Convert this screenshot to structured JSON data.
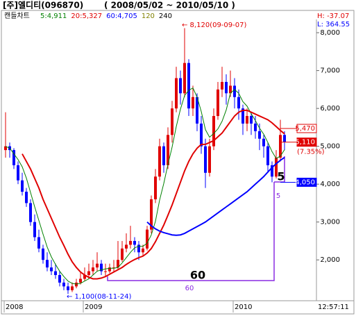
{
  "header": {
    "title": "[주]엘디티(096870)",
    "range": "( 2008/05/02 ~ 2010/05/10 )",
    "chart_label": "캔들차트",
    "high_info": "H: -37.07",
    "low_info": "L: 364.55",
    "time": "12:57:11"
  },
  "chart_data": {
    "type": "candlestick",
    "categories": [
      "2008",
      null,
      null,
      null,
      null,
      null,
      null,
      null,
      null,
      null,
      null,
      null,
      null,
      null,
      null,
      null,
      null,
      null,
      null,
      "2009",
      null,
      null,
      null,
      null,
      null,
      null,
      null,
      null,
      null,
      null,
      null,
      null,
      null,
      null,
      null,
      null,
      null,
      null,
      null,
      null,
      null,
      null,
      null,
      null,
      null,
      null,
      null,
      null,
      null,
      null,
      null,
      null,
      null,
      null,
      null,
      "2010",
      null,
      null,
      null,
      null,
      null,
      null,
      null,
      null,
      null,
      null,
      null,
      null
    ],
    "ohlc": [
      [
        4900,
        5900,
        4700,
        5000
      ],
      [
        5000,
        5100,
        4700,
        4900
      ],
      [
        4900,
        4950,
        4400,
        4500
      ],
      [
        4500,
        4600,
        4000,
        4100
      ],
      [
        4100,
        4300,
        3700,
        3800
      ],
      [
        3800,
        3900,
        3400,
        3500
      ],
      [
        3500,
        3600,
        2900,
        3000
      ],
      [
        3000,
        3200,
        2500,
        2600
      ],
      [
        2600,
        2800,
        2200,
        2300
      ],
      [
        2300,
        2400,
        1900,
        2000
      ],
      [
        2000,
        2200,
        1700,
        1800
      ],
      [
        1800,
        2000,
        1600,
        1700
      ],
      [
        1700,
        1900,
        1500,
        1600
      ],
      [
        1600,
        1700,
        1300,
        1400
      ],
      [
        1400,
        1500,
        1200,
        1300
      ],
      [
        1300,
        1400,
        1100,
        1200
      ],
      [
        1200,
        1400,
        1150,
        1300
      ],
      [
        1300,
        1500,
        1250,
        1400
      ],
      [
        1400,
        1700,
        1350,
        1500
      ],
      [
        1500,
        1800,
        1450,
        1600
      ],
      [
        1600,
        1900,
        1500,
        1700
      ],
      [
        1700,
        2000,
        1600,
        1800
      ],
      [
        1800,
        2200,
        1700,
        1900
      ],
      [
        1900,
        2000,
        1600,
        1700
      ],
      [
        1700,
        1900,
        1550,
        1700
      ],
      [
        1700,
        1900,
        1650,
        1800
      ],
      [
        1800,
        2000,
        1700,
        1800
      ],
      [
        1800,
        2500,
        1750,
        2000
      ],
      [
        2000,
        2500,
        1950,
        2300
      ],
      [
        2300,
        2700,
        2200,
        2400
      ],
      [
        2400,
        2900,
        2300,
        2500
      ],
      [
        2500,
        2600,
        2200,
        2400
      ],
      [
        2400,
        2500,
        2000,
        2200
      ],
      [
        2200,
        2400,
        2100,
        2300
      ],
      [
        2300,
        2900,
        2250,
        2800
      ],
      [
        2800,
        3700,
        2700,
        3600
      ],
      [
        3600,
        4400,
        3500,
        4200
      ],
      [
        4200,
        5200,
        4100,
        5000
      ],
      [
        5000,
        5100,
        4300,
        4500
      ],
      [
        4500,
        5500,
        4400,
        5300
      ],
      [
        5300,
        6200,
        5100,
        6000
      ],
      [
        6000,
        7100,
        5900,
        6800
      ],
      [
        6800,
        7000,
        6100,
        6400
      ],
      [
        6400,
        8120,
        6300,
        7200
      ],
      [
        7200,
        7300,
        5800,
        6000
      ],
      [
        6000,
        6600,
        5800,
        6300
      ],
      [
        6300,
        6400,
        5400,
        5600
      ],
      [
        5600,
        5800,
        4800,
        5000
      ],
      [
        5000,
        5200,
        3900,
        4300
      ],
      [
        4300,
        5200,
        4200,
        5000
      ],
      [
        5000,
        6000,
        4900,
        5800
      ],
      [
        5800,
        6700,
        5700,
        6500
      ],
      [
        6500,
        7100,
        6300,
        6700
      ],
      [
        6700,
        6900,
        6100,
        6400
      ],
      [
        6400,
        7000,
        6300,
        6600
      ],
      [
        6600,
        6800,
        6000,
        6300
      ],
      [
        6300,
        6500,
        5700,
        6000
      ],
      [
        6000,
        6100,
        5300,
        5600
      ],
      [
        5600,
        6000,
        5400,
        5800
      ],
      [
        5800,
        5900,
        5300,
        5600
      ],
      [
        5600,
        5800,
        5200,
        5400
      ],
      [
        5400,
        5600,
        4900,
        5200
      ],
      [
        5200,
        5300,
        4700,
        5000
      ],
      [
        5000,
        5100,
        4300,
        4500
      ],
      [
        4500,
        4600,
        4050,
        4200
      ],
      [
        4200,
        4900,
        4150,
        4700
      ],
      [
        4700,
        5700,
        4600,
        5300
      ],
      [
        5300,
        5400,
        4900,
        5110
      ]
    ],
    "up_color": "#e00000",
    "down_color": "#0000ff",
    "series": [
      {
        "name": "5:4,911",
        "color": "#008000",
        "values": [
          5000,
          4950,
          4800,
          4650,
          4460,
          4160,
          3780,
          3400,
          3040,
          2680,
          2340,
          2080,
          1880,
          1700,
          1560,
          1440,
          1380,
          1360,
          1380,
          1440,
          1500,
          1600,
          1700,
          1740,
          1760,
          1780,
          1780,
          1800,
          1920,
          2060,
          2200,
          2320,
          2360,
          2360,
          2440,
          2660,
          3020,
          3580,
          4020,
          4520,
          4980,
          5520,
          5980,
          6340,
          6480,
          6540,
          6300,
          5920,
          5440,
          5240,
          5340,
          5460,
          5660,
          5960,
          6400,
          6500,
          6400,
          6180,
          6060,
          5860,
          5680,
          5480,
          5320,
          5100,
          4860,
          4680,
          4740,
          4911
        ]
      },
      {
        "name": "20:5,327",
        "color": "#e00000",
        "values": [
          null,
          null,
          null,
          null,
          4800,
          4600,
          4400,
          4150,
          3900,
          3600,
          3350,
          3100,
          2850,
          2600,
          2380,
          2150,
          1950,
          1800,
          1680,
          1600,
          1540,
          1500,
          1500,
          1520,
          1560,
          1620,
          1680,
          1740,
          1800,
          1880,
          1950,
          2010,
          2060,
          2100,
          2180,
          2300,
          2480,
          2700,
          2920,
          3180,
          3450,
          3750,
          4050,
          4350,
          4600,
          4800,
          4950,
          5050,
          5050,
          5100,
          5150,
          5250,
          5350,
          5500,
          5650,
          5800,
          5900,
          5950,
          5950,
          5900,
          5850,
          5800,
          5750,
          5700,
          5620,
          5520,
          5420,
          5327
        ]
      },
      {
        "name": "60:4,705",
        "color": "#0000ff",
        "values": [
          null,
          null,
          null,
          null,
          null,
          null,
          null,
          null,
          null,
          null,
          null,
          null,
          null,
          null,
          null,
          null,
          null,
          null,
          null,
          null,
          null,
          null,
          null,
          null,
          null,
          null,
          null,
          null,
          null,
          null,
          null,
          null,
          null,
          null,
          3000,
          2900,
          2820,
          2760,
          2720,
          2690,
          2660,
          2650,
          2660,
          2700,
          2760,
          2820,
          2880,
          2940,
          3000,
          3080,
          3160,
          3240,
          3320,
          3400,
          3480,
          3560,
          3640,
          3720,
          3800,
          3900,
          4000,
          4100,
          4200,
          4320,
          4440,
          4540,
          4630,
          4705
        ]
      }
    ],
    "indicators": [
      {
        "name": "120",
        "color": "#808000"
      },
      {
        "name": "240",
        "color": "#000000"
      }
    ],
    "ylim": [
      940,
      8350
    ],
    "yticks": [
      {
        "value": 2000,
        "label": "2,000"
      },
      {
        "value": 3000,
        "label": "3,000"
      },
      {
        "value": 4000,
        "label": "4,000"
      },
      {
        "value": 5000,
        "label": "5,000"
      },
      {
        "value": 6000,
        "label": "6,000"
      },
      {
        "value": 7000,
        "label": "7,000"
      },
      {
        "value": 8000,
        "label": "8,000"
      }
    ],
    "high_note": "← 8,120(09-09-07)",
    "low_note": "← 1,100(08-11-24)",
    "price_tags": [
      {
        "value": 5470,
        "label": "5,470",
        "color": "#e00000"
      },
      {
        "value": 5110,
        "label": "5,110",
        "color": "#e00000"
      },
      {
        "value": 4050,
        "label": "4,050",
        "color": "#0000ff"
      }
    ],
    "change_label": "(7.35%)",
    "period_marks": [
      {
        "label": "60",
        "sub": "60"
      },
      {
        "label": "5",
        "sub": "5"
      }
    ]
  }
}
